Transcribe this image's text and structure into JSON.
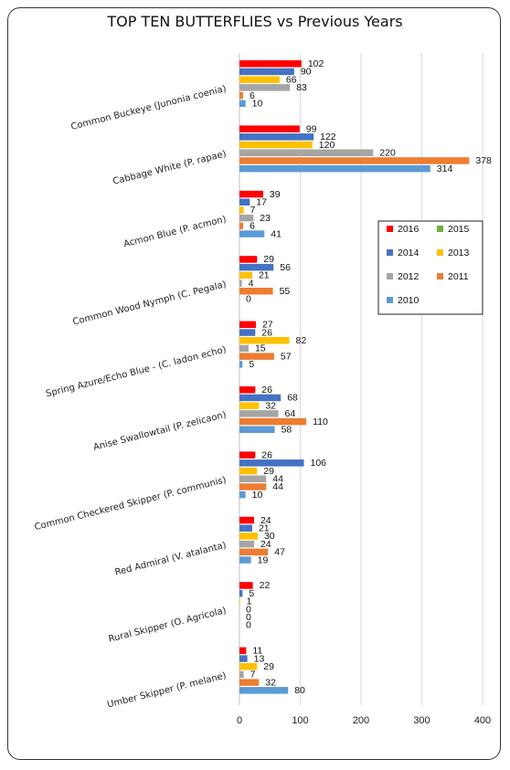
{
  "chart_data": {
    "type": "bar",
    "orientation": "horizontal",
    "title": "TOP TEN BUTTERFLIES vs Previous Years",
    "xlim": [
      0,
      400
    ],
    "xticks": [
      0,
      100,
      200,
      300,
      400
    ],
    "grid": true,
    "legend_position": "right",
    "categories": [
      "Common Buckeye (Junonia coenia)",
      "Cabbage White (P. rapae)",
      "Acmon Blue (P. acmon)",
      "Common Wood Nymph (C. Pegala)",
      "Spring Azure/Echo Blue - (C. ladon echo)",
      "Anise Swallowtail (P. zelicaon)",
      "Common Checkered Skipper (P. communis)",
      "Red Admiral (V. atalanta)",
      "Rural Skipper (O. Agricola)",
      "Umber Skipper (P. melane)"
    ],
    "series": [
      {
        "name": "2016",
        "color": "#ff0000",
        "values": [
          102,
          99,
          39,
          29,
          27,
          26,
          26,
          24,
          22,
          11
        ]
      },
      {
        "name": "2015",
        "color": "#70ad47",
        "values": [
          null,
          null,
          null,
          null,
          null,
          null,
          null,
          null,
          null,
          null
        ]
      },
      {
        "name": "2014",
        "color": "#4472c4",
        "values": [
          90,
          122,
          17,
          56,
          26,
          68,
          106,
          21,
          5,
          13
        ]
      },
      {
        "name": "2013",
        "color": "#ffc000",
        "values": [
          66,
          120,
          7,
          21,
          82,
          32,
          29,
          30,
          1,
          29
        ]
      },
      {
        "name": "2012",
        "color": "#a5a5a5",
        "values": [
          83,
          220,
          23,
          4,
          15,
          64,
          44,
          24,
          0,
          7
        ]
      },
      {
        "name": "2011",
        "color": "#ed7d31",
        "values": [
          6,
          378,
          6,
          55,
          57,
          110,
          44,
          47,
          0,
          32
        ]
      },
      {
        "name": "2010",
        "color": "#5b9bd5",
        "values": [
          10,
          314,
          41,
          0,
          5,
          58,
          10,
          19,
          0,
          80
        ]
      }
    ]
  }
}
